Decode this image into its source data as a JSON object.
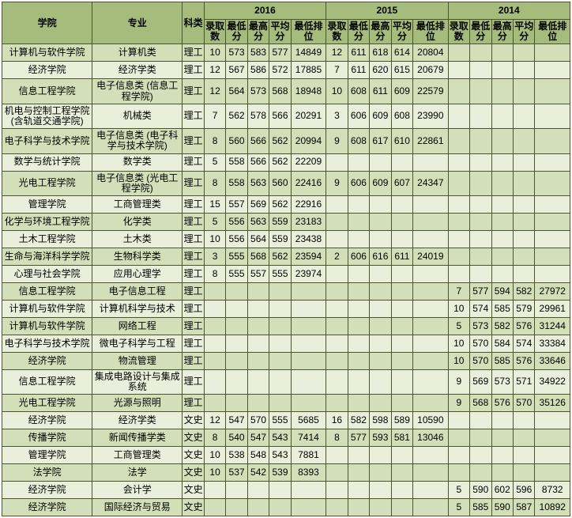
{
  "colors": {
    "header_bg": "#a6bc7c",
    "row_even": "#d2dfb8",
    "row_odd": "#e9efdb",
    "border": "#4a5530"
  },
  "head": {
    "college": "学院",
    "major": "专业",
    "subject": "科类",
    "years": [
      "2016",
      "2015",
      "2014"
    ],
    "sub": [
      "录取数",
      "最低分",
      "最高分",
      "平均分",
      "最低排位"
    ]
  },
  "rows": [
    {
      "c": "计算机与软件学院",
      "m": "计算机类",
      "k": "理工",
      "y16": [
        "10",
        "573",
        "583",
        "577",
        "14849"
      ],
      "y15": [
        "12",
        "611",
        "618",
        "614",
        "20804"
      ],
      "y14": [
        "",
        "",
        "",
        "",
        ""
      ]
    },
    {
      "c": "经济学院",
      "m": "经济学类",
      "k": "理工",
      "y16": [
        "12",
        "567",
        "586",
        "572",
        "17885"
      ],
      "y15": [
        "7",
        "611",
        "620",
        "615",
        "20679"
      ],
      "y14": [
        "",
        "",
        "",
        "",
        ""
      ]
    },
    {
      "c": "信息工程学院",
      "m": "电子信息类 (信息工程学院)",
      "k": "理工",
      "y16": [
        "12",
        "564",
        "573",
        "568",
        "18948"
      ],
      "y15": [
        "10",
        "608",
        "611",
        "609",
        "22579"
      ],
      "y14": [
        "",
        "",
        "",
        "",
        ""
      ]
    },
    {
      "c": "机电与控制工程学院 (含轨道交通学院)",
      "m": "机械类",
      "k": "理工",
      "y16": [
        "7",
        "562",
        "578",
        "566",
        "20291"
      ],
      "y15": [
        "3",
        "606",
        "609",
        "608",
        "23990"
      ],
      "y14": [
        "",
        "",
        "",
        "",
        ""
      ]
    },
    {
      "c": "电子科学与技术学院",
      "m": "电子信息类 (电子科学与技术学院)",
      "k": "理工",
      "y16": [
        "8",
        "560",
        "566",
        "562",
        "20994"
      ],
      "y15": [
        "9",
        "608",
        "617",
        "610",
        "22861"
      ],
      "y14": [
        "",
        "",
        "",
        "",
        ""
      ]
    },
    {
      "c": "数学与统计学院",
      "m": "数学类",
      "k": "理工",
      "y16": [
        "5",
        "558",
        "566",
        "562",
        "22209"
      ],
      "y15": [
        "",
        "",
        "",
        "",
        ""
      ],
      "y14": [
        "",
        "",
        "",
        "",
        ""
      ]
    },
    {
      "c": "光电工程学院",
      "m": "电子信息类 (光电工程学院)",
      "k": "理工",
      "y16": [
        "8",
        "558",
        "563",
        "560",
        "22416"
      ],
      "y15": [
        "9",
        "606",
        "609",
        "607",
        "24347"
      ],
      "y14": [
        "",
        "",
        "",
        "",
        ""
      ]
    },
    {
      "c": "管理学院",
      "m": "工商管理类",
      "k": "理工",
      "y16": [
        "15",
        "557",
        "569",
        "562",
        "22916"
      ],
      "y15": [
        "",
        "",
        "",
        "",
        ""
      ],
      "y14": [
        "",
        "",
        "",
        "",
        ""
      ]
    },
    {
      "c": "化学与环境工程学院",
      "m": "化学类",
      "k": "理工",
      "y16": [
        "5",
        "556",
        "563",
        "559",
        "23183"
      ],
      "y15": [
        "",
        "",
        "",
        "",
        ""
      ],
      "y14": [
        "",
        "",
        "",
        "",
        ""
      ]
    },
    {
      "c": "土木工程学院",
      "m": "土木类",
      "k": "理工",
      "y16": [
        "10",
        "556",
        "564",
        "559",
        "23438"
      ],
      "y15": [
        "",
        "",
        "",
        "",
        ""
      ],
      "y14": [
        "",
        "",
        "",
        "",
        ""
      ]
    },
    {
      "c": "生命与海洋科学学院",
      "m": "生物科学类",
      "k": "理工",
      "y16": [
        "3",
        "555",
        "568",
        "562",
        "23594"
      ],
      "y15": [
        "2",
        "606",
        "616",
        "611",
        "24019"
      ],
      "y14": [
        "",
        "",
        "",
        "",
        ""
      ]
    },
    {
      "c": "心理与社会学院",
      "m": "应用心理学",
      "k": "理工",
      "y16": [
        "8",
        "555",
        "557",
        "555",
        "23974"
      ],
      "y15": [
        "",
        "",
        "",
        "",
        ""
      ],
      "y14": [
        "",
        "",
        "",
        "",
        ""
      ]
    },
    {
      "c": "信息工程学院",
      "m": "电子信息工程",
      "k": "理工",
      "y16": [
        "",
        "",
        "",
        "",
        ""
      ],
      "y15": [
        "",
        "",
        "",
        "",
        ""
      ],
      "y14": [
        "7",
        "577",
        "594",
        "582",
        "27972"
      ]
    },
    {
      "c": "计算机与软件学院",
      "m": "计算机科学与技术",
      "k": "理工",
      "y16": [
        "",
        "",
        "",
        "",
        ""
      ],
      "y15": [
        "",
        "",
        "",
        "",
        ""
      ],
      "y14": [
        "10",
        "574",
        "585",
        "579",
        "29961"
      ]
    },
    {
      "c": "计算机与软件学院",
      "m": "网络工程",
      "k": "理工",
      "y16": [
        "",
        "",
        "",
        "",
        ""
      ],
      "y15": [
        "",
        "",
        "",
        "",
        ""
      ],
      "y14": [
        "5",
        "573",
        "582",
        "576",
        "31244"
      ]
    },
    {
      "c": "电子科学与技术学院",
      "m": "微电子科学与工程",
      "k": "理工",
      "y16": [
        "",
        "",
        "",
        "",
        ""
      ],
      "y15": [
        "",
        "",
        "",
        "",
        ""
      ],
      "y14": [
        "10",
        "570",
        "584",
        "574",
        "33384"
      ]
    },
    {
      "c": "经济学院",
      "m": "物流管理",
      "k": "理工",
      "y16": [
        "",
        "",
        "",
        "",
        ""
      ],
      "y15": [
        "",
        "",
        "",
        "",
        ""
      ],
      "y14": [
        "10",
        "570",
        "585",
        "576",
        "33646"
      ]
    },
    {
      "c": "信息工程学院",
      "m": "集成电路设计与集成系统",
      "k": "理工",
      "y16": [
        "",
        "",
        "",
        "",
        ""
      ],
      "y15": [
        "",
        "",
        "",
        "",
        ""
      ],
      "y14": [
        "9",
        "569",
        "573",
        "571",
        "34922"
      ]
    },
    {
      "c": "光电工程学院",
      "m": "光源与照明",
      "k": "理工",
      "y16": [
        "",
        "",
        "",
        "",
        ""
      ],
      "y15": [
        "",
        "",
        "",
        "",
        ""
      ],
      "y14": [
        "9",
        "568",
        "576",
        "570",
        "35126"
      ]
    },
    {
      "c": "经济学院",
      "m": "经济学类",
      "k": "文史",
      "y16": [
        "12",
        "547",
        "570",
        "555",
        "5685"
      ],
      "y15": [
        "16",
        "582",
        "598",
        "589",
        "10590"
      ],
      "y14": [
        "",
        "",
        "",
        "",
        ""
      ]
    },
    {
      "c": "传播学院",
      "m": "新闻传播学类",
      "k": "文史",
      "y16": [
        "8",
        "540",
        "547",
        "543",
        "7414"
      ],
      "y15": [
        "8",
        "577",
        "593",
        "581",
        "13046"
      ],
      "y14": [
        "",
        "",
        "",
        "",
        ""
      ]
    },
    {
      "c": "管理学院",
      "m": "工商管理类",
      "k": "文史",
      "y16": [
        "10",
        "538",
        "548",
        "543",
        "7881"
      ],
      "y15": [
        "",
        "",
        "",
        "",
        ""
      ],
      "y14": [
        "",
        "",
        "",
        "",
        ""
      ]
    },
    {
      "c": "法学院",
      "m": "法学",
      "k": "文史",
      "y16": [
        "10",
        "537",
        "542",
        "539",
        "8393"
      ],
      "y15": [
        "",
        "",
        "",
        "",
        ""
      ],
      "y14": [
        "",
        "",
        "",
        "",
        ""
      ]
    },
    {
      "c": "经济学院",
      "m": "会计学",
      "k": "文史",
      "y16": [
        "",
        "",
        "",
        "",
        ""
      ],
      "y15": [
        "",
        "",
        "",
        "",
        ""
      ],
      "y14": [
        "5",
        "590",
        "602",
        "596",
        "8732"
      ]
    },
    {
      "c": "经济学院",
      "m": "国际经济与贸易",
      "k": "文史",
      "y16": [
        "",
        "",
        "",
        "",
        ""
      ],
      "y15": [
        "",
        "",
        "",
        "",
        ""
      ],
      "y14": [
        "5",
        "585",
        "590",
        "587",
        "10892"
      ]
    }
  ]
}
